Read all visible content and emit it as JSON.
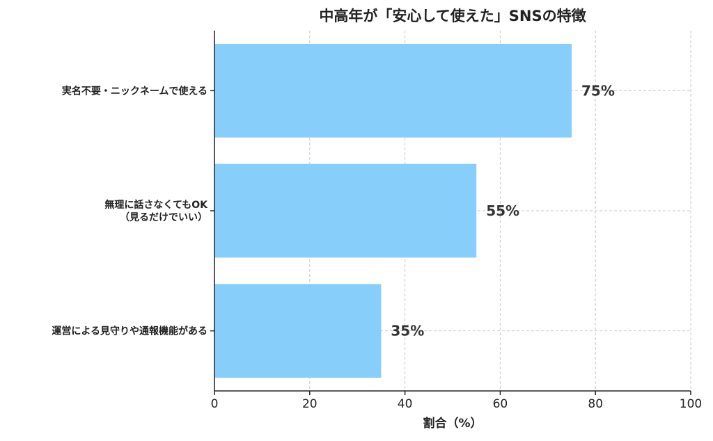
{
  "chart_data": {
    "type": "bar",
    "orientation": "horizontal",
    "title": "中高年が「安心して使えた」SNSの特徴",
    "xlabel": "割合（%）",
    "ylabel": "",
    "xlim": [
      0,
      100
    ],
    "xticks": [
      0,
      20,
      40,
      60,
      80,
      100
    ],
    "grid": true,
    "bar_color": "#87cefa",
    "categories": [
      [
        "実名不要・ニックネームで使える"
      ],
      [
        "無理に話さなくてもOK",
        "（見るだけでいい）"
      ],
      [
        "運営による見守りや通報機能がある"
      ]
    ],
    "values": [
      75,
      55,
      35
    ],
    "value_labels": [
      "75%",
      "55%",
      "35%"
    ]
  }
}
